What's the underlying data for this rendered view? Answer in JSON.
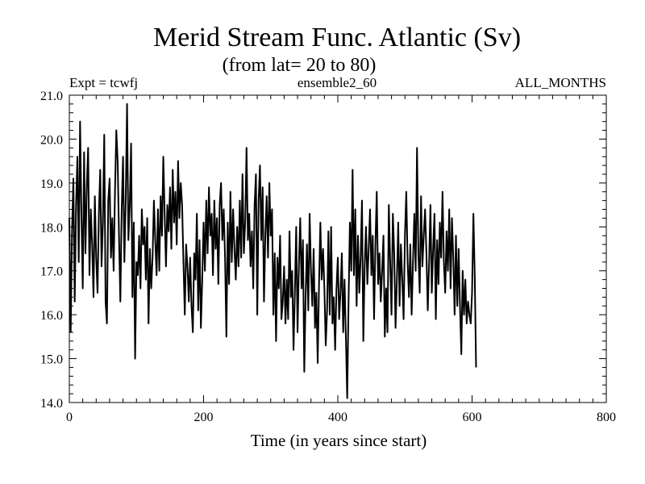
{
  "chart_data": {
    "type": "line",
    "title": "Merid Stream Func. Atlantic (Sv)",
    "subtitle": "(from lat= 20 to 80)",
    "header_left": "Expt = tcwfj",
    "header_center": "ensemble2_60",
    "header_right": "ALL_MONTHS",
    "xlabel": "Time (in years since start)",
    "ylabel": "",
    "xlim": [
      0,
      800
    ],
    "ylim": [
      14.0,
      21.0
    ],
    "xticks": [
      0,
      200,
      400,
      600,
      800
    ],
    "xtick_labels": [
      "0",
      "200",
      "400",
      "600",
      "800"
    ],
    "yticks": [
      14.0,
      15.0,
      16.0,
      17.0,
      18.0,
      19.0,
      20.0,
      21.0
    ],
    "ytick_labels": [
      "14.0",
      "15.0",
      "16.0",
      "17.0",
      "18.0",
      "19.0",
      "20.0",
      "21.0"
    ],
    "series": [
      {
        "name": "Merid Stream Func. Atlantic",
        "x_start": 0,
        "x_step": 2,
        "values": [
          18.2,
          15.6,
          17.9,
          19.1,
          16.3,
          18.5,
          19.6,
          17.2,
          20.4,
          18.3,
          16.6,
          19.7,
          17.4,
          18.9,
          19.8,
          16.9,
          18.4,
          17.6,
          16.4,
          18.7,
          17.3,
          16.5,
          18.3,
          19.3,
          17.1,
          18.1,
          20.1,
          16.3,
          15.8,
          18.6,
          19.1,
          17.3,
          18.2,
          17.0,
          18.8,
          20.2,
          19.5,
          17.8,
          16.3,
          18.4,
          19.6,
          17.2,
          18.6,
          20.8,
          17.7,
          18.5,
          19.9,
          16.4,
          18.1,
          15.0,
          17.2,
          16.9,
          17.8,
          16.6,
          18.4,
          17.6,
          18.0,
          16.8,
          18.2,
          15.8,
          17.5,
          16.6,
          17.3,
          18.6,
          17.7,
          16.9,
          18.4,
          17.0,
          18.7,
          17.8,
          19.6,
          18.3,
          17.1,
          18.5,
          17.9,
          18.9,
          17.5,
          19.3,
          18.1,
          18.8,
          17.6,
          19.5,
          18.2,
          19.0,
          18.5,
          17.2,
          16.0,
          17.6,
          17.1,
          16.3,
          17.3,
          16.2,
          15.6,
          17.4,
          16.8,
          18.3,
          16.1,
          17.7,
          15.7,
          16.8,
          18.1,
          17.0,
          18.6,
          17.4,
          18.9,
          17.8,
          18.3,
          16.9,
          18.6,
          17.5,
          18.2,
          16.7,
          18.5,
          19.0,
          17.7,
          18.4,
          17.3,
          15.5,
          18.1,
          16.7,
          18.8,
          17.2,
          18.4,
          17.5,
          16.8,
          18.0,
          17.1,
          18.6,
          17.3,
          19.2,
          17.4,
          18.1,
          19.8,
          17.7,
          18.3,
          17.1,
          17.9,
          16.6,
          18.5,
          19.2,
          16.0,
          18.6,
          19.4,
          17.7,
          18.9,
          16.3,
          17.8,
          18.7,
          17.3,
          19.0,
          17.8,
          18.4,
          16.0,
          17.4,
          15.4,
          17.3,
          16.6,
          17.8,
          15.9,
          16.3,
          17.1,
          15.8,
          16.8,
          15.9,
          17.9,
          16.4,
          17.0,
          15.2,
          16.5,
          18.0,
          15.6,
          17.1,
          18.2,
          16.6,
          17.7,
          14.7,
          16.4,
          17.6,
          16.1,
          18.3,
          17.0,
          16.2,
          17.5,
          15.7,
          16.5,
          14.9,
          16.7,
          18.1,
          16.8,
          17.5,
          16.6,
          15.3,
          16.1,
          17.9,
          16.0,
          18.0,
          15.8,
          16.4,
          15.2,
          16.6,
          17.3,
          15.9,
          16.5,
          17.4,
          15.6,
          16.8,
          15.5,
          14.1,
          16.3,
          18.1,
          17.0,
          19.3,
          16.9,
          18.4,
          16.2,
          17.8,
          16.5,
          17.3,
          18.6,
          15.4,
          17.1,
          18.0,
          16.7,
          17.5,
          18.4,
          16.9,
          17.8,
          15.9,
          17.6,
          18.8,
          16.7,
          17.4,
          16.3,
          17.0,
          17.8,
          15.5,
          16.6,
          15.6,
          18.5,
          17.2,
          16.0,
          18.3,
          17.4,
          15.7,
          16.8,
          18.1,
          16.2,
          17.6,
          16.8,
          15.9,
          17.8,
          18.8,
          17.2,
          16.4,
          17.6,
          16.0,
          17.2,
          18.3,
          17.0,
          19.8,
          17.4,
          16.5,
          18.7,
          17.1,
          17.8,
          18.4,
          17.4,
          16.1,
          17.2,
          18.5,
          16.5,
          17.5,
          18.3,
          15.9,
          17.7,
          16.7,
          18.1,
          17.3,
          18.8,
          17.2,
          16.5,
          17.9,
          17.0,
          18.4,
          16.6,
          18.2,
          17.3,
          16.0,
          17.8,
          16.2,
          17.5,
          16.2,
          15.1,
          17.0,
          16.0,
          16.8,
          15.8,
          16.3,
          16.0,
          15.8,
          16.5,
          18.3,
          16.9,
          14.8
        ]
      }
    ]
  }
}
